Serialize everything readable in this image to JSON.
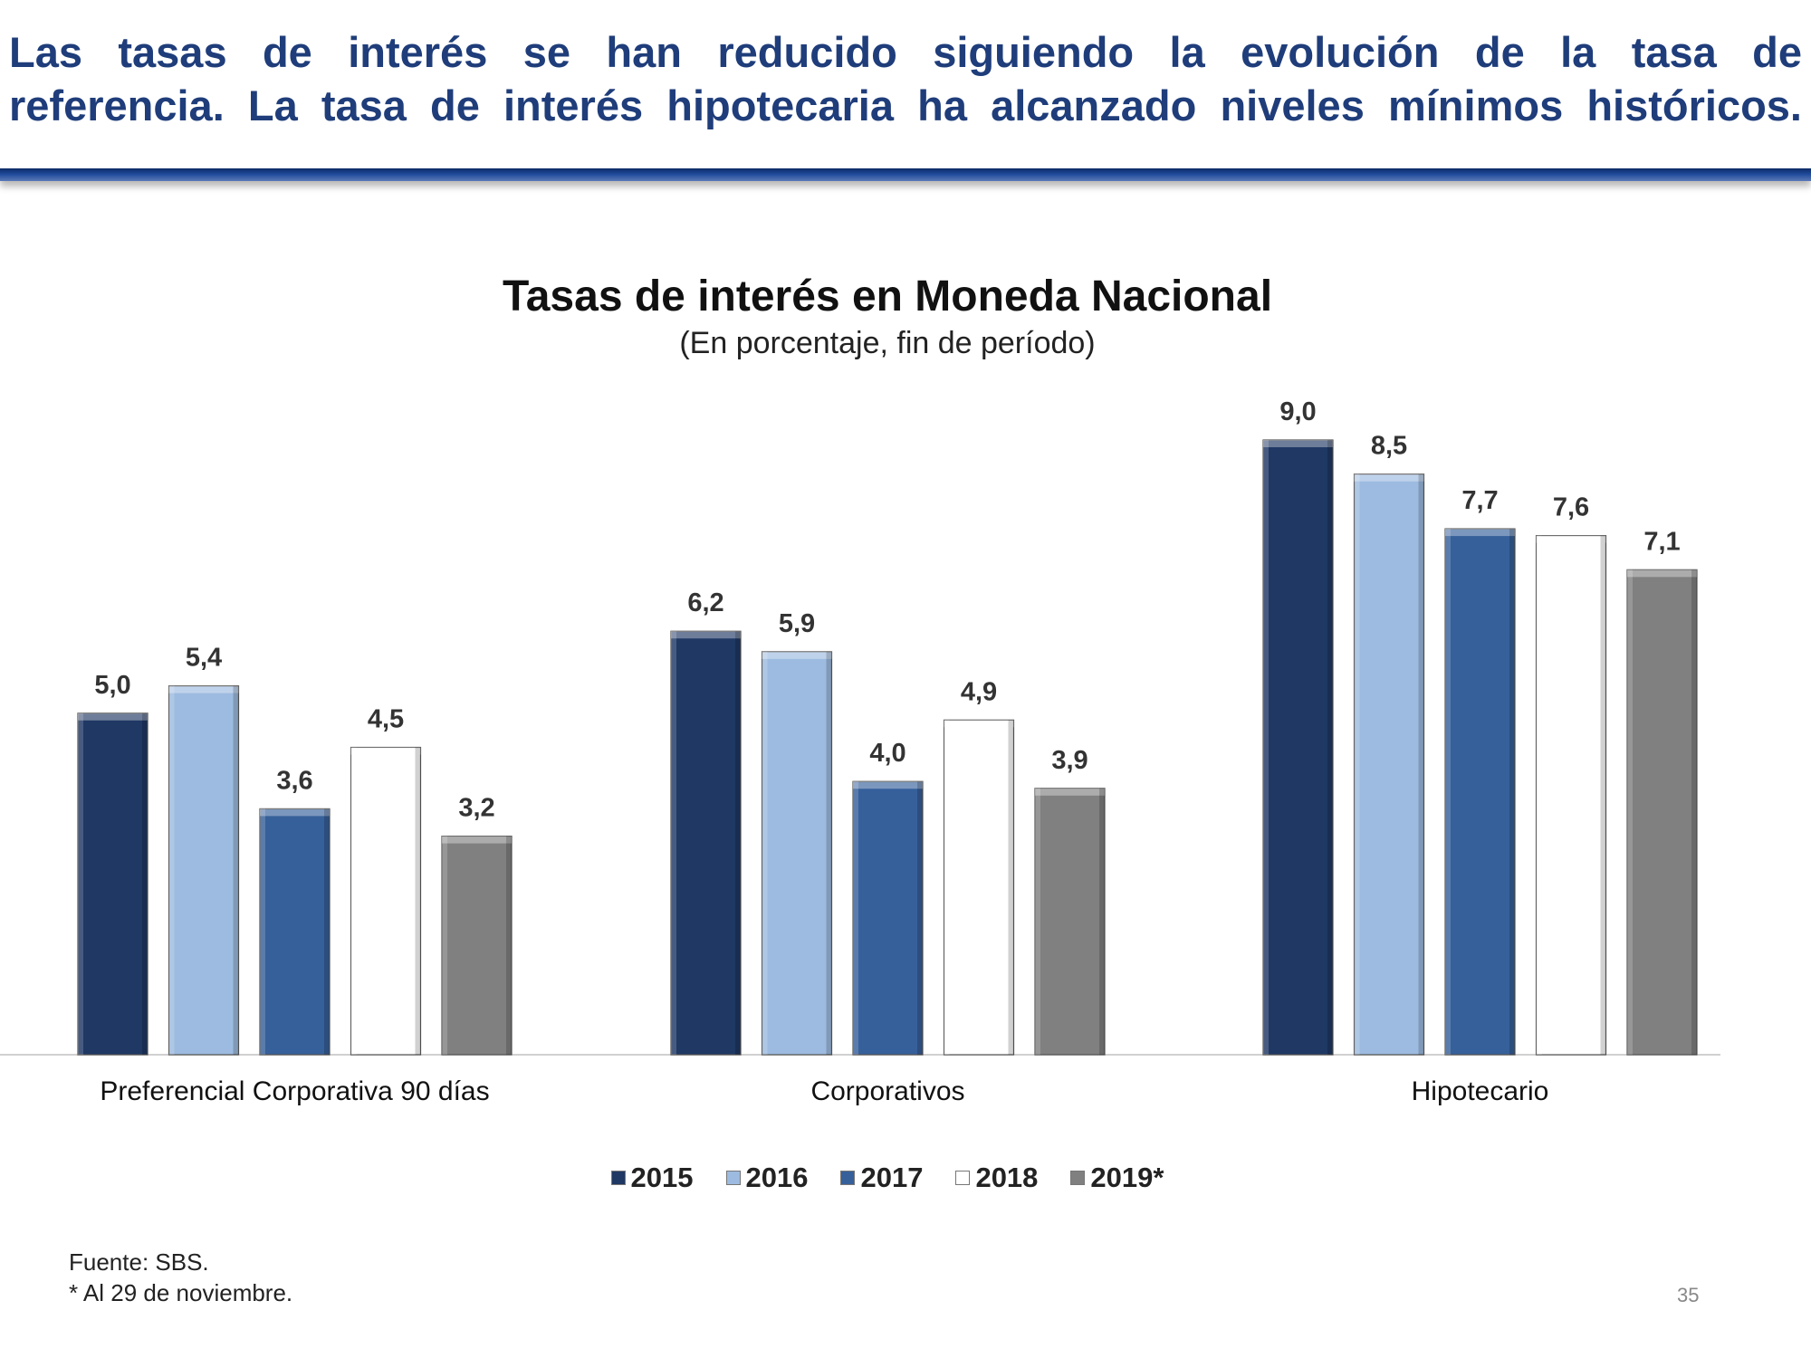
{
  "headline": {
    "line1": "Las tasas de interés se han reducido siguiendo la evolución de la tasa de",
    "line2": "referencia. La tasa de interés hipotecaria ha alcanzado niveles mínimos históricos."
  },
  "chart_data": {
    "type": "bar",
    "title": "Tasas de interés en Moneda Nacional",
    "subtitle": "(En porcentaje, fin de período)",
    "categories": [
      "Preferencial Corporativa 90 días",
      "Corporativos",
      "Hipotecario"
    ],
    "series": [
      {
        "name": "2015",
        "color": "#1f3864",
        "values": [
          5.0,
          6.2,
          9.0
        ],
        "labels": [
          "5,0",
          "6,2",
          "9,0"
        ]
      },
      {
        "name": "2016",
        "color": "#9dbbe0",
        "values": [
          5.4,
          5.9,
          8.5
        ],
        "labels": [
          "5,4",
          "5,9",
          "8,5"
        ]
      },
      {
        "name": "2017",
        "color": "#36609a",
        "values": [
          3.6,
          4.0,
          7.7
        ],
        "labels": [
          "3,6",
          "4,0",
          "7,7"
        ]
      },
      {
        "name": "2018",
        "color": "#ffffff",
        "values": [
          4.5,
          4.9,
          7.6
        ],
        "labels": [
          "4,5",
          "4,9",
          "7,6"
        ]
      },
      {
        "name": "2019*",
        "color": "#808080",
        "values": [
          3.2,
          3.9,
          7.1
        ],
        "labels": [
          "3,2",
          "3,9",
          "7,1"
        ]
      }
    ],
    "ylim": [
      0,
      9.0
    ],
    "xlabel": "",
    "ylabel": "",
    "legend": "bottom"
  },
  "footer": {
    "source": "Fuente: SBS.",
    "note": "* Al 29 de noviembre.",
    "page": "35"
  }
}
